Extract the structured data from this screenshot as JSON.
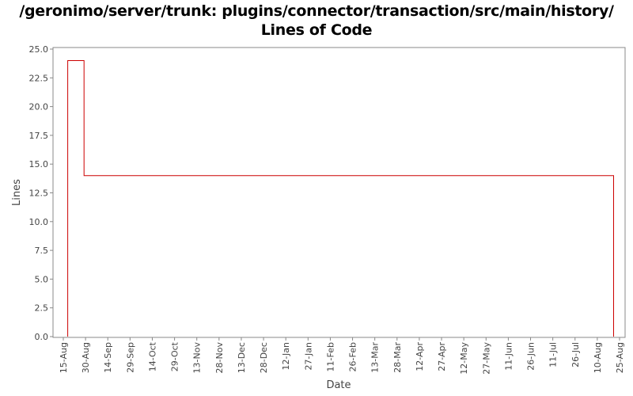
{
  "chart_data": {
    "type": "line",
    "title": "/geronimo/server/trunk: plugins/connector/transaction/src/main/history/",
    "subtitle": "Lines of Code",
    "xlabel": "Date",
    "ylabel": "Lines",
    "ylim": [
      0,
      25
    ],
    "y_ticks": [
      "0.0",
      "2.5",
      "5.0",
      "7.5",
      "10.0",
      "12.5",
      "15.0",
      "17.5",
      "20.0",
      "22.5",
      "25.0"
    ],
    "x_ticks": [
      "15-Aug",
      "30-Aug",
      "14-Sep",
      "29-Sep",
      "14-Oct",
      "29-Oct",
      "13-Nov",
      "28-Nov",
      "13-Dec",
      "28-Dec",
      "12-Jan",
      "27-Jan",
      "11-Feb",
      "26-Feb",
      "13-Mar",
      "28-Mar",
      "12-Apr",
      "27-Apr",
      "12-May",
      "27-May",
      "11-Jun",
      "26-Jun",
      "11-Jul",
      "26-Jul",
      "10-Aug",
      "25-Aug"
    ],
    "grid": false,
    "step": true,
    "line_color": "#cc0000",
    "series": [
      {
        "points": [
          {
            "x": "18-Aug",
            "y": 0
          },
          {
            "x": "18-Aug",
            "y": 24
          },
          {
            "x": "29-Aug",
            "y": 24
          },
          {
            "x": "29-Aug",
            "y": 14
          },
          {
            "x": "21-Aug",
            "y": 14
          },
          {
            "x": "21-Aug",
            "y": 0
          }
        ]
      }
    ]
  }
}
